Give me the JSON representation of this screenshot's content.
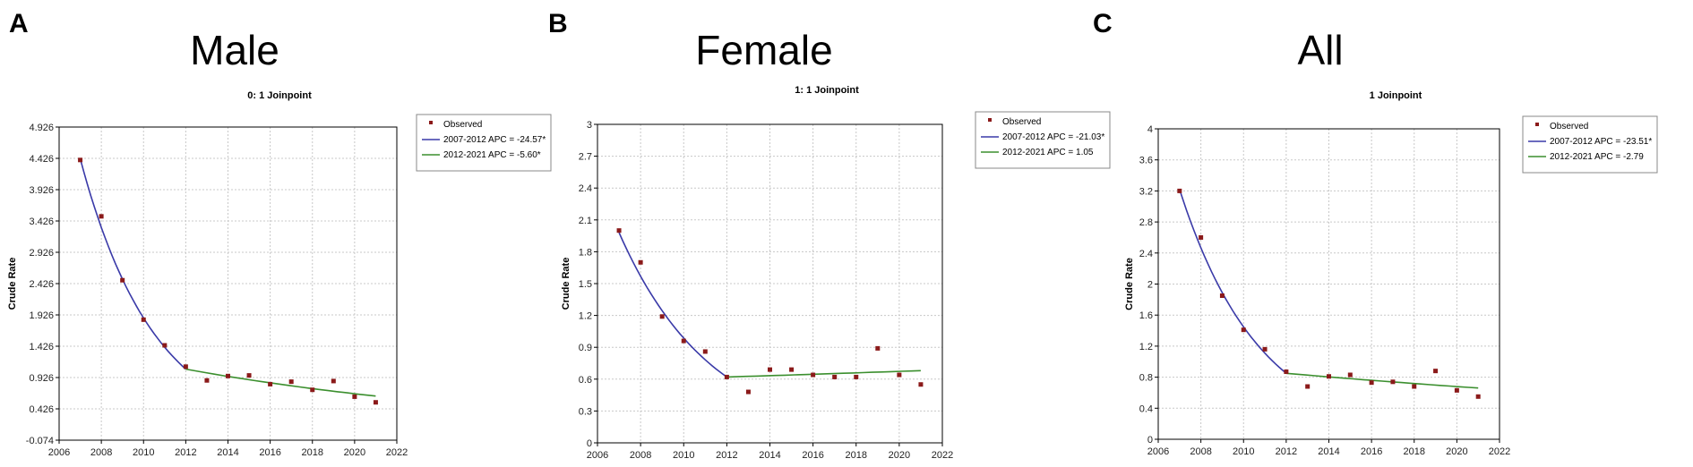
{
  "chart_data": [
    {
      "type": "line",
      "panel_label": "A",
      "heading": "Male",
      "title": "0: 1 Joinpoint",
      "ylabel": "Crude Rate",
      "xlabel": "",
      "xlim": [
        2006,
        2022
      ],
      "ylim": [
        -0.074,
        4.926
      ],
      "x_ticks": [
        2006,
        2008,
        2010,
        2012,
        2014,
        2016,
        2018,
        2020,
        2022
      ],
      "y_ticks": [
        -0.074,
        0.426,
        0.926,
        1.426,
        1.926,
        2.426,
        2.926,
        3.426,
        3.926,
        4.426,
        4.926
      ],
      "y_tick_labels": [
        "-0.074",
        "0.426",
        "0.926",
        "1.426",
        "1.926",
        "2.426",
        "2.926",
        "3.426",
        "3.926",
        "4.426",
        "4.926"
      ],
      "grid": true,
      "legend_position": "right-outside",
      "observed": {
        "name": "Observed",
        "color": "#8b1a1a",
        "x": [
          2007,
          2008,
          2009,
          2010,
          2011,
          2012,
          2013,
          2014,
          2015,
          2016,
          2017,
          2018,
          2019,
          2020,
          2021
        ],
        "y": [
          4.4,
          3.5,
          2.48,
          1.85,
          1.44,
          1.1,
          0.88,
          0.95,
          0.96,
          0.82,
          0.86,
          0.73,
          0.87,
          0.62,
          0.53
        ]
      },
      "segments": [
        {
          "name": "2007-2012 APC  =  -24.57*",
          "color": "#3a3aa8",
          "start": [
            2007,
            4.42
          ],
          "end": [
            2012,
            1.06
          ],
          "apc": -24.57
        },
        {
          "name": "2012-2021 APC  =  -5.60*",
          "color": "#3b8f2e",
          "start": [
            2012,
            1.06
          ],
          "end": [
            2021,
            0.63
          ],
          "apc": -5.6
        }
      ]
    },
    {
      "type": "line",
      "panel_label": "B",
      "heading": "Female",
      "title": "1: 1 Joinpoint",
      "ylabel": "Crude Rate",
      "xlabel": "",
      "xlim": [
        2006,
        2022
      ],
      "ylim": [
        0,
        3
      ],
      "x_ticks": [
        2006,
        2008,
        2010,
        2012,
        2014,
        2016,
        2018,
        2020,
        2022
      ],
      "y_ticks": [
        0,
        0.3,
        0.6,
        0.9,
        1.2,
        1.5,
        1.8,
        2.1,
        2.4,
        2.7,
        3
      ],
      "y_tick_labels": [
        "0",
        "0.3",
        "0.6",
        "0.9",
        "1.2",
        "1.5",
        "1.8",
        "2.1",
        "2.4",
        "2.7",
        "3"
      ],
      "grid": true,
      "legend_position": "right-outside",
      "observed": {
        "name": "Observed",
        "color": "#8b1a1a",
        "x": [
          2007,
          2008,
          2009,
          2010,
          2011,
          2012,
          2013,
          2014,
          2015,
          2016,
          2017,
          2018,
          2019,
          2020,
          2021
        ],
        "y": [
          2.0,
          1.7,
          1.19,
          0.96,
          0.86,
          0.62,
          0.48,
          0.69,
          0.69,
          0.64,
          0.62,
          0.62,
          0.89,
          0.64,
          0.55
        ]
      },
      "segments": [
        {
          "name": "2007-2012 APC  =  -21.03*",
          "color": "#3a3aa8",
          "start": [
            2007,
            1.98
          ],
          "end": [
            2012,
            0.62
          ],
          "apc": -21.03
        },
        {
          "name": "2012-2021 APC  =   1.05",
          "color": "#3b8f2e",
          "start": [
            2012,
            0.62
          ],
          "end": [
            2021,
            0.68
          ],
          "apc": 1.05
        }
      ]
    },
    {
      "type": "line",
      "panel_label": "C",
      "heading": "All",
      "title": "1 Joinpoint",
      "ylabel": "Crude Rate",
      "xlabel": "",
      "xlim": [
        2006,
        2022
      ],
      "ylim": [
        0,
        4
      ],
      "x_ticks": [
        2006,
        2008,
        2010,
        2012,
        2014,
        2016,
        2018,
        2020,
        2022
      ],
      "y_ticks": [
        0,
        0.4,
        0.8,
        1.2,
        1.6,
        2,
        2.4,
        2.8,
        3.2,
        3.6,
        4
      ],
      "y_tick_labels": [
        "0",
        "0.4",
        "0.8",
        "1.2",
        "1.6",
        "2",
        "2.4",
        "2.8",
        "3.2",
        "3.6",
        "4"
      ],
      "grid": true,
      "legend_position": "right-outside",
      "observed": {
        "name": "Observed",
        "color": "#8b1a1a",
        "x": [
          2007,
          2008,
          2009,
          2010,
          2011,
          2012,
          2013,
          2014,
          2015,
          2016,
          2017,
          2018,
          2019,
          2020,
          2021
        ],
        "y": [
          3.2,
          2.6,
          1.85,
          1.41,
          1.16,
          0.87,
          0.68,
          0.81,
          0.83,
          0.73,
          0.74,
          0.68,
          0.88,
          0.63,
          0.55
        ]
      },
      "segments": [
        {
          "name": "2007-2012 APC  =  -23.51*",
          "color": "#3a3aa8",
          "start": [
            2007,
            3.22
          ],
          "end": [
            2012,
            0.85
          ],
          "apc": -23.51
        },
        {
          "name": "2012-2021 APC  =  -2.79",
          "color": "#3b8f2e",
          "start": [
            2012,
            0.85
          ],
          "end": [
            2021,
            0.66
          ],
          "apc": -2.79
        }
      ]
    }
  ]
}
